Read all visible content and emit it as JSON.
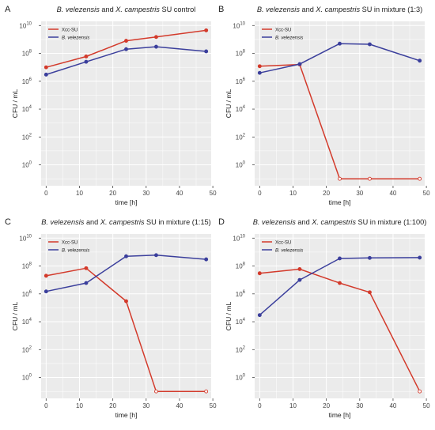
{
  "colors": {
    "xcc": "#d33a2b",
    "bvel": "#3b3f9c",
    "panel_bg": "#ebebeb",
    "grid": "#ffffff"
  },
  "chart_data": [
    {
      "letter": "A",
      "type": "line",
      "title_parts": [
        "B. velezensis",
        " and ",
        "X. campestris",
        " SU control"
      ],
      "xlabel": "time [h]",
      "ylabel": "CFU / mL",
      "xlim": [
        -1.5,
        49.5
      ],
      "ylim_log10": [
        -1.5,
        10.3
      ],
      "x_ticks": [
        "0",
        "10",
        "20",
        "30",
        "40",
        "50"
      ],
      "y_ticks": [
        "10^0",
        "10^2",
        "10^4",
        "10^6",
        "10^8",
        "10^10"
      ],
      "y_scale": "log10",
      "legend_position": "top-left",
      "x": [
        0,
        12,
        24,
        33,
        48
      ],
      "series": [
        {
          "name": "Xcc-SU",
          "values": [
            10000000.0,
            60000000.0,
            800000000.0,
            1500000000.0,
            4500000000.0
          ],
          "open": [
            false,
            false,
            false,
            false,
            false
          ]
        },
        {
          "name": "B. velezensis",
          "values": [
            3000000.0,
            25000000.0,
            200000000.0,
            300000000.0,
            140000000.0
          ],
          "open": [
            false,
            false,
            false,
            false,
            false
          ]
        }
      ]
    },
    {
      "letter": "B",
      "type": "line",
      "title_parts": [
        "B. velezensis",
        " and ",
        "X. campestris",
        " SU in mixture (1:3)"
      ],
      "xlabel": "time [h]",
      "ylabel": "CFU / mL",
      "xlim": [
        -1.5,
        49.5
      ],
      "ylim_log10": [
        -1.5,
        10.3
      ],
      "x_ticks": [
        "0",
        "10",
        "20",
        "30",
        "40",
        "50"
      ],
      "y_ticks": [
        "10^0",
        "10^2",
        "10^4",
        "10^6",
        "10^8",
        "10^10"
      ],
      "y_scale": "log10",
      "legend_position": "top-left",
      "x": [
        0,
        12,
        24,
        33,
        48
      ],
      "series": [
        {
          "name": "Xcc-SU",
          "values": [
            12000000.0,
            16000000.0,
            0.1,
            0.1,
            0.1
          ],
          "open": [
            false,
            false,
            true,
            true,
            true
          ]
        },
        {
          "name": "B. velezensis",
          "values": [
            4000000.0,
            17000000.0,
            500000000.0,
            450000000.0,
            30000000.0
          ],
          "open": [
            false,
            false,
            false,
            false,
            false
          ]
        }
      ]
    },
    {
      "letter": "C",
      "type": "line",
      "title_parts": [
        "B. velezensis",
        " and ",
        "X. campestris",
        " SU in mixture (1:15)"
      ],
      "xlabel": "time [h]",
      "ylabel": "CFU / mL",
      "xlim": [
        -1.5,
        49.5
      ],
      "ylim_log10": [
        -1.5,
        10.3
      ],
      "x_ticks": [
        "0",
        "10",
        "20",
        "30",
        "40",
        "50"
      ],
      "y_ticks": [
        "10^0",
        "10^2",
        "10^4",
        "10^6",
        "10^8",
        "10^10"
      ],
      "y_scale": "log10",
      "legend_position": "top-left",
      "x": [
        0,
        12,
        24,
        33,
        48
      ],
      "series": [
        {
          "name": "Xcc-SU",
          "values": [
            20000000.0,
            70000000.0,
            300000.0,
            0.1,
            0.1
          ],
          "open": [
            false,
            false,
            false,
            true,
            true
          ]
        },
        {
          "name": "B. velezensis",
          "values": [
            1500000.0,
            6000000.0,
            500000000.0,
            600000000.0,
            300000000.0
          ],
          "open": [
            false,
            false,
            false,
            false,
            false
          ]
        }
      ]
    },
    {
      "letter": "D",
      "type": "line",
      "title_parts": [
        "B. velezensis",
        " and ",
        "X. campestris",
        " SU in mixture (1:100)"
      ],
      "xlabel": "time [h]",
      "ylabel": "CFU / mL",
      "xlim": [
        -1.5,
        49.5
      ],
      "ylim_log10": [
        -1.5,
        10.3
      ],
      "x_ticks": [
        "0",
        "10",
        "20",
        "30",
        "40",
        "50"
      ],
      "y_ticks": [
        "10^0",
        "10^2",
        "10^4",
        "10^6",
        "10^8",
        "10^10"
      ],
      "y_scale": "log10",
      "legend_position": "top-left",
      "x": [
        0,
        12,
        24,
        33,
        48
      ],
      "series": [
        {
          "name": "Xcc-SU",
          "values": [
            30000000.0,
            60000000.0,
            6000000.0,
            1300000.0,
            0.1
          ],
          "open": [
            false,
            false,
            false,
            false,
            true
          ]
        },
        {
          "name": "B. velezensis",
          "values": [
            30000.0,
            10000000.0,
            350000000.0,
            380000000.0,
            400000000.0
          ],
          "open": [
            false,
            false,
            false,
            false,
            false
          ]
        }
      ]
    }
  ]
}
